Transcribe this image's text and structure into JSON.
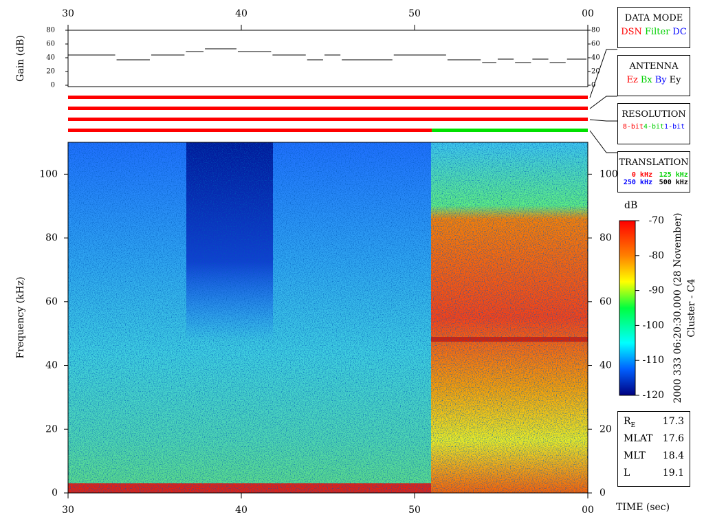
{
  "chart_data": [
    {
      "type": "step",
      "ylabel": "Gain (dB)",
      "x": [
        30,
        32.8,
        34.8,
        36.8,
        37.9,
        39.8,
        41.8,
        43.8,
        44.8,
        45.8,
        48.8,
        51.9,
        53.9,
        54.8,
        55.8,
        56.8,
        57.8,
        58.8
      ],
      "values": [
        44,
        37,
        44,
        49,
        53,
        49,
        44,
        37,
        44,
        37,
        44,
        37,
        33,
        38,
        33,
        38,
        33,
        38
      ],
      "color": "#000000",
      "xlim": [
        30,
        60
      ],
      "xticks": [
        30,
        40,
        50,
        {
          "value": 60,
          "label": "00"
        }
      ],
      "ylim": [
        0,
        80
      ],
      "yticks": [
        0,
        20,
        40,
        60,
        80
      ]
    },
    {
      "type": "status",
      "rows": [
        {
          "segments": [
            {
              "start": 30,
              "end": 60,
              "color": "#ff0000"
            }
          ]
        },
        {
          "segments": [
            {
              "start": 30,
              "end": 60,
              "color": "#ff0000"
            }
          ]
        },
        {
          "segments": [
            {
              "start": 30,
              "end": 60,
              "color": "#ff0000"
            }
          ]
        },
        {
          "segments": [
            {
              "start": 30,
              "end": 51,
              "color": "#ff0000"
            },
            {
              "start": 51,
              "end": 60,
              "color": "#00e000"
            }
          ]
        }
      ],
      "xlim": [
        30,
        60
      ]
    },
    {
      "type": "spectrogram",
      "xlabel": "TIME (sec)",
      "ylabel": "Frequency (kHz)",
      "xlim": [
        30,
        60
      ],
      "xticks": [
        30,
        40,
        50,
        {
          "value": 60,
          "label": "00"
        }
      ],
      "ylim": [
        0,
        110
      ],
      "yticks": [
        0,
        20,
        40,
        60,
        80,
        100
      ],
      "colorbar": {
        "label": "dB",
        "lim": [
          -120,
          -70
        ],
        "ticks": [
          -70,
          -80,
          -90,
          -100,
          -110,
          -120
        ]
      },
      "side_text": [
        "2000 333 06:20:30.000 (28 November)",
        "Cluster - C4"
      ]
    }
  ],
  "legend_boxes": [
    {
      "title": "DATA MODE",
      "items": [
        {
          "text": "DSN",
          "color": "#ff0000"
        },
        {
          "text": "Filter",
          "color": "#00d000"
        },
        {
          "text": "DC",
          "color": "#0000ff"
        }
      ]
    },
    {
      "title": "ANTENNA",
      "items": [
        {
          "text": "Ez",
          "color": "#ff0000"
        },
        {
          "text": "Bx",
          "color": "#00d000"
        },
        {
          "text": "By",
          "color": "#0000ff"
        },
        {
          "text": "Ey",
          "color": "#000000"
        }
      ]
    },
    {
      "title": "RESOLUTION",
      "items": [
        {
          "text": "8-bit",
          "color": "#ff0000"
        },
        {
          "text": "4-bit",
          "color": "#00d000"
        },
        {
          "text": "1-bit",
          "color": "#0000ff"
        }
      ]
    },
    {
      "title": "TRANSLATION",
      "items": [
        {
          "text": "0 kHz",
          "color": "#ff0000"
        },
        {
          "text": "125 kHz",
          "color": "#00d000"
        },
        {
          "text": "250 kHz",
          "color": "#0000ff"
        },
        {
          "text": "500 kHz",
          "color": "#000000"
        }
      ]
    }
  ],
  "ephemeris": [
    {
      "label": "R",
      "sub": "E",
      "value": 17.3
    },
    {
      "label": "MLAT",
      "value": 17.6
    },
    {
      "label": "MLT",
      "value": 18.4
    },
    {
      "label": "L",
      "value": 19.1
    }
  ]
}
